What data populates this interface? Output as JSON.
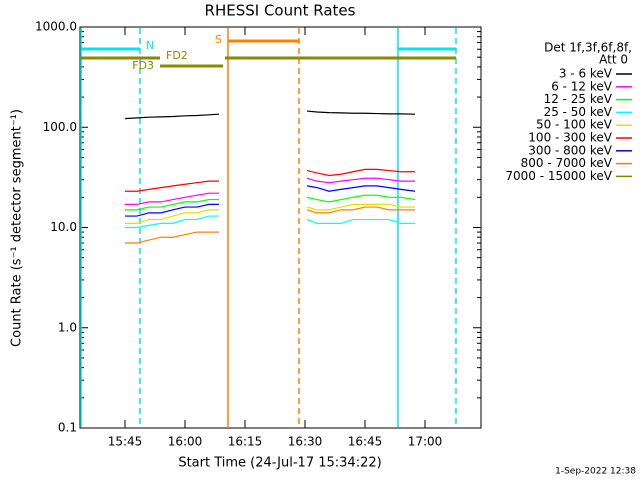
{
  "chart_data": {
    "type": "line",
    "title": "RHESSI Count Rates",
    "xlabel": "Start Time (24-Jul-17 15:34:22)",
    "ylabel": "Count Rate (s⁻¹ detector segment⁻¹)",
    "footer": "1-Sep-2022 12:38",
    "legend_header": [
      "Det 1f,3f,6f,8f,",
      "Att 0"
    ],
    "log_y": true,
    "xlim": [
      933.75,
      1034
    ],
    "ylim": [
      0.1,
      1000
    ],
    "xticks": [
      {
        "value": 945,
        "label": "15:45"
      },
      {
        "value": 960,
        "label": "16:00"
      },
      {
        "value": 975,
        "label": "16:15"
      },
      {
        "value": 990,
        "label": "16:30"
      },
      {
        "value": 1005,
        "label": "16:45"
      },
      {
        "value": 1020,
        "label": "17:00"
      }
    ],
    "yticks": [
      0.1,
      {
        "value": 1,
        "label": "1.0"
      },
      {
        "value": 10,
        "label": "10.0"
      },
      {
        "value": 100,
        "label": "100.0"
      },
      {
        "value": 1000,
        "label": "1000.0"
      }
    ],
    "x": [
      945,
      948,
      951,
      954,
      957,
      960,
      963,
      966,
      968.5,
      980,
      990.5,
      993,
      996,
      999,
      1002,
      1005,
      1008,
      1011,
      1014,
      1017.5
    ],
    "series": [
      {
        "name": "3 - 6 keV",
        "color": "#000000",
        "values": [
          122,
          124,
          126,
          127,
          128,
          130,
          131,
          133,
          135,
          null,
          145,
          142,
          140,
          139,
          138,
          138,
          137,
          136,
          136,
          135
        ]
      },
      {
        "name": "6 - 12 keV",
        "color": "#ff00ff",
        "values": [
          17,
          17,
          18,
          18,
          19,
          20,
          21,
          22,
          22,
          null,
          31,
          29,
          28,
          29,
          30,
          31,
          31,
          30,
          29,
          29
        ]
      },
      {
        "name": "12 - 25 keV",
        "color": "#00ff00",
        "values": [
          15,
          15,
          16,
          16,
          17,
          18,
          18,
          19,
          19,
          null,
          20,
          19,
          18,
          19,
          20,
          21,
          21,
          20,
          20,
          19
        ]
      },
      {
        "name": "25 - 50 keV",
        "color": "#00ffff",
        "values": [
          10,
          10,
          10.5,
          11,
          11,
          12,
          12,
          13,
          13,
          null,
          12,
          11,
          11,
          11,
          12,
          12,
          12,
          12,
          11,
          11
        ]
      },
      {
        "name": "50 - 100 keV",
        "color": "#e0e000",
        "values": [
          11,
          11,
          12,
          12,
          13,
          14,
          14,
          15,
          15,
          null,
          16,
          15,
          15,
          16,
          17,
          17,
          17,
          17,
          16,
          16
        ]
      },
      {
        "name": "100 - 300 keV",
        "color": "#ff0000",
        "values": [
          23,
          23,
          24,
          25,
          26,
          27,
          28,
          29,
          29,
          null,
          37,
          35,
          33,
          34,
          36,
          38,
          38,
          37,
          36,
          36
        ]
      },
      {
        "name": "300 - 800 keV",
        "color": "#0000ff",
        "values": [
          13,
          13,
          14,
          14,
          15,
          16,
          16,
          17,
          17,
          null,
          26,
          25,
          23,
          24,
          25,
          26,
          26,
          25,
          24,
          23
        ]
      },
      {
        "name": "800 - 7000 keV",
        "color": "#ff8000",
        "values": [
          7,
          7,
          7.5,
          8,
          8,
          8.5,
          9,
          9,
          9,
          null,
          15,
          14,
          14,
          15,
          15,
          16,
          16,
          15,
          15,
          15
        ]
      },
      {
        "name": "7000 - 15000 keV",
        "color": "#808000",
        "values": [
          null,
          null,
          null,
          null,
          null,
          null,
          null,
          null,
          null,
          null,
          null,
          null,
          null,
          null,
          null,
          null,
          null,
          null,
          null,
          null
        ]
      }
    ],
    "flags": [
      {
        "label": "N",
        "color": "#00e5ee",
        "ranges": [
          [
            934,
            948.75
          ],
          [
            1013.25,
            1027.75
          ]
        ]
      },
      {
        "label": "S",
        "color": "#ff8000",
        "ranges": [
          [
            970.75,
            988.5
          ]
        ]
      },
      {
        "label": "FD2",
        "color": "#8a8a00",
        "ranges": [
          [
            934,
            953.75
          ],
          [
            970,
            1027.75
          ]
        ]
      },
      {
        "label": "FD3",
        "color": "#8a8a00",
        "ranges": [
          [
            953.75,
            969.5
          ]
        ]
      }
    ],
    "markers": [
      {
        "x": 934,
        "color": "#00e5ee",
        "dashed": false
      },
      {
        "x": 948.75,
        "color": "#00e5ee",
        "dashed": true
      },
      {
        "x": 970.75,
        "color": "#ff8000",
        "dashed": false
      },
      {
        "x": 988.5,
        "color": "#ff8000",
        "dashed": true
      },
      {
        "x": 1013.25,
        "color": "#00e5ee",
        "dashed": false
      },
      {
        "x": 1027.75,
        "color": "#00e5ee",
        "dashed": true
      }
    ]
  }
}
